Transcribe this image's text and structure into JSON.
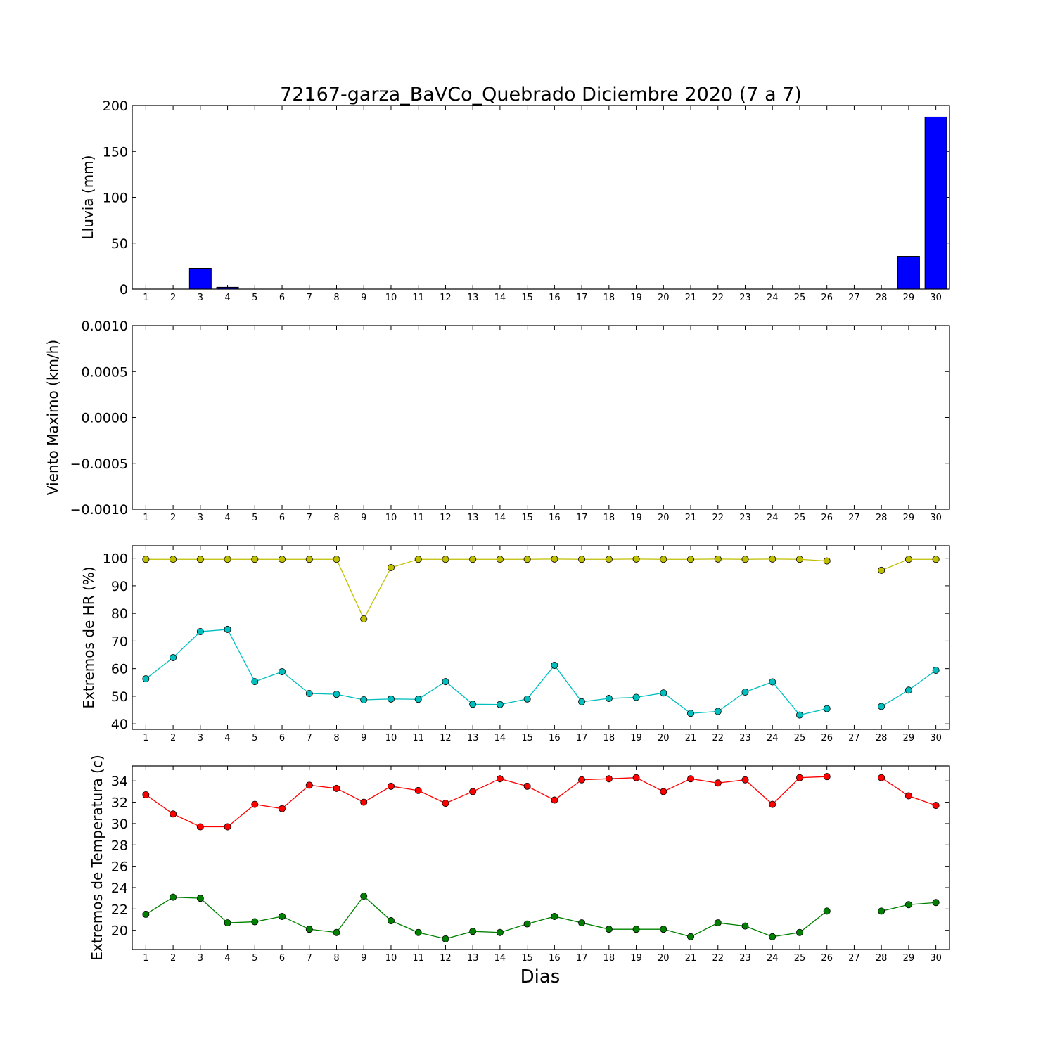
{
  "chart_data": {
    "title": "72167-garza_BaVCo_Quebrado Diciembre 2020  (7 a 7)",
    "xlabel": "Dias",
    "days": [
      1,
      2,
      3,
      4,
      5,
      6,
      7,
      8,
      9,
      10,
      11,
      12,
      13,
      14,
      15,
      16,
      17,
      18,
      19,
      20,
      21,
      22,
      23,
      24,
      25,
      26,
      27,
      28,
      29,
      30
    ],
    "panels": [
      {
        "type": "bar",
        "ylabel": "Lluvia (mm)",
        "ylim": [
          0,
          200
        ],
        "yticks": [
          0,
          50,
          100,
          150,
          200
        ],
        "ytick_labels": [
          "0",
          "50",
          "100",
          "150",
          "200"
        ],
        "series": [
          {
            "color": "#0000ff",
            "values": [
              0,
              0,
              22.6,
              2.0,
              0,
              0,
              0,
              0,
              0,
              0,
              0,
              0,
              0,
              0,
              0,
              0,
              0,
              0,
              0,
              0,
              0,
              0,
              0,
              0,
              0,
              0,
              0,
              0,
              35.6,
              187.4
            ]
          }
        ]
      },
      {
        "type": "line",
        "ylabel": "Viento Maximo (km/h)",
        "ylim": [
          -0.001,
          0.001
        ],
        "yticks": [
          -0.001,
          -0.0005,
          0,
          0.0005,
          0.001
        ],
        "ytick_labels": [
          "−0.0010",
          "−0.0005",
          "0.0000",
          "0.0005",
          "0.0010"
        ],
        "series": []
      },
      {
        "type": "line",
        "ylabel": "Extremos de HR (%)",
        "ylim": [
          38,
          104.5
        ],
        "yticks": [
          40,
          50,
          60,
          70,
          80,
          90,
          100
        ],
        "ytick_labels": [
          "40",
          "50",
          "60",
          "70",
          "80",
          "90",
          "100"
        ],
        "series": [
          {
            "color": "#bfbf00",
            "values": [
              99.6,
              99.6,
              99.6,
              99.6,
              99.6,
              99.6,
              99.6,
              99.6,
              78.0,
              96.6,
              99.6,
              99.6,
              99.6,
              99.6,
              99.6,
              99.7,
              99.6,
              99.6,
              99.7,
              99.6,
              99.6,
              99.7,
              99.6,
              99.7,
              99.6,
              99.0,
              null,
              95.6,
              99.6,
              99.6
            ]
          },
          {
            "color": "#00bfbf",
            "values": [
              56.3,
              64.0,
              73.4,
              74.2,
              55.3,
              58.9,
              51.0,
              50.7,
              48.7,
              49.0,
              48.9,
              55.3,
              47.1,
              47.0,
              49.0,
              61.2,
              48.0,
              49.2,
              49.6,
              51.2,
              43.8,
              44.5,
              51.5,
              55.2,
              43.2,
              45.5,
              null,
              46.3,
              52.2,
              59.4
            ]
          }
        ]
      },
      {
        "type": "line",
        "ylabel": "Extremos de Temperatura (c)",
        "ylim": [
          18.2,
          35.4
        ],
        "yticks": [
          20,
          22,
          24,
          26,
          28,
          30,
          32,
          34
        ],
        "ytick_labels": [
          "20",
          "22",
          "24",
          "26",
          "28",
          "30",
          "32",
          "34"
        ],
        "series": [
          {
            "color": "#ff0000",
            "values": [
              32.7,
              30.9,
              29.7,
              29.7,
              31.8,
              31.4,
              33.6,
              33.3,
              32.0,
              33.5,
              33.1,
              31.9,
              33.0,
              34.2,
              33.5,
              32.2,
              34.1,
              34.2,
              34.3,
              33.0,
              34.2,
              33.8,
              34.1,
              31.8,
              34.3,
              34.4,
              null,
              34.3,
              32.6,
              31.7
            ]
          },
          {
            "color": "#008000",
            "values": [
              21.5,
              23.1,
              23.0,
              20.7,
              20.8,
              21.3,
              20.1,
              19.8,
              23.2,
              20.9,
              19.8,
              19.2,
              19.9,
              19.8,
              20.6,
              21.3,
              20.7,
              20.1,
              20.1,
              20.1,
              19.4,
              20.7,
              20.4,
              19.4,
              19.8,
              21.8,
              null,
              21.8,
              22.4,
              22.6
            ]
          }
        ]
      }
    ]
  }
}
